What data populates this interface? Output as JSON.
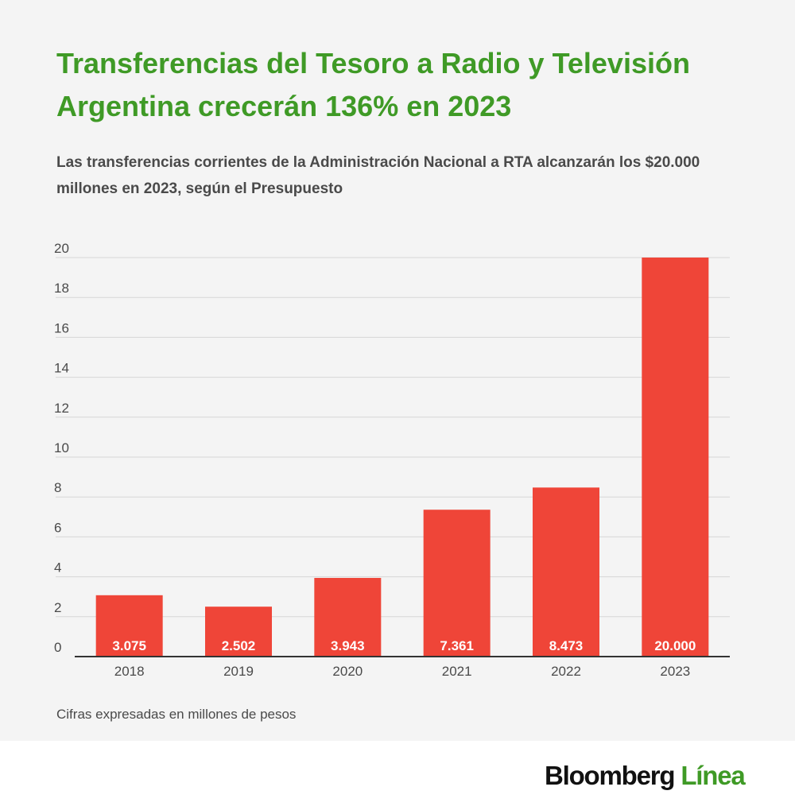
{
  "chart_data": {
    "type": "bar",
    "title": "Transferencias del Tesoro a Radio y Televisión Argentina crecerán 136% en 2023",
    "subtitle": "Las transferencias corrientes de la Administración Nacional a RTA alcanzarán los $20.000 millones en 2023, según el Presupuesto",
    "categories": [
      "2018",
      "2019",
      "2020",
      "2021",
      "2022",
      "2023"
    ],
    "values": [
      3.075,
      2.502,
      3.943,
      7.361,
      8.473,
      20.0
    ],
    "value_labels": [
      "3.075",
      "2.502",
      "3.943",
      "7.361",
      "8.473",
      "20.000"
    ],
    "ylim": [
      0,
      20
    ],
    "yticks": [
      "0",
      "2",
      "4",
      "6",
      "8",
      "10",
      "12",
      "14",
      "16",
      "18",
      "20"
    ],
    "xlabel": "",
    "ylabel": "",
    "grid": true,
    "bar_color": "#ef4538",
    "footnote": "Cifras expresadas en millones de pesos"
  },
  "branding": {
    "logo_main": "Bloomberg",
    "logo_accent": "Línea",
    "title_color": "#3f9a26"
  }
}
